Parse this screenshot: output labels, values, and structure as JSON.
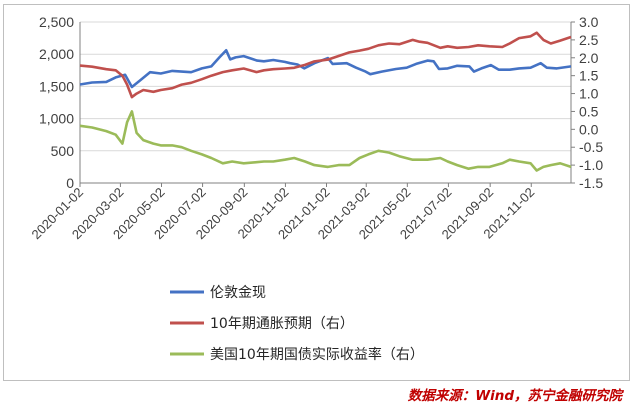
{
  "chart_data": {
    "type": "line",
    "x_ticks": [
      "2020-01-02",
      "2020-03-02",
      "2020-05-02",
      "2020-07-02",
      "2020-09-02",
      "2020-11-02",
      "2021-01-02",
      "2021-03-02",
      "2021-05-02",
      "2021-07-02",
      "2021-09-02",
      "2021-11-02"
    ],
    "x_range": [
      "2020-01-02",
      "2021-12-31"
    ],
    "y_left": {
      "lim": [
        0,
        2500
      ],
      "ticks": [
        "0",
        "500",
        "1,000",
        "1,500",
        "2,000",
        "2,500"
      ]
    },
    "y_right": {
      "lim": [
        -1.5,
        3.0
      ],
      "ticks": [
        "-1.5",
        "-1.0",
        "-0.5",
        "0.0",
        "0.5",
        "1.0",
        "1.5",
        "2.0",
        "2.5",
        "3.0"
      ]
    },
    "grid": "horizontal",
    "legend_position": "bottom",
    "series": [
      {
        "name": "伦敦金现",
        "axis": "left",
        "color": "#4472c4",
        "points": [
          [
            "2020-01-02",
            1530
          ],
          [
            "2020-01-20",
            1560
          ],
          [
            "2020-02-10",
            1570
          ],
          [
            "2020-02-24",
            1640
          ],
          [
            "2020-03-09",
            1680
          ],
          [
            "2020-03-19",
            1490
          ],
          [
            "2020-04-01",
            1600
          ],
          [
            "2020-04-15",
            1720
          ],
          [
            "2020-05-01",
            1700
          ],
          [
            "2020-05-18",
            1740
          ],
          [
            "2020-06-01",
            1730
          ],
          [
            "2020-06-15",
            1720
          ],
          [
            "2020-07-01",
            1780
          ],
          [
            "2020-07-15",
            1810
          ],
          [
            "2020-07-27",
            1950
          ],
          [
            "2020-08-06",
            2060
          ],
          [
            "2020-08-12",
            1920
          ],
          [
            "2020-08-20",
            1950
          ],
          [
            "2020-09-01",
            1970
          ],
          [
            "2020-09-21",
            1900
          ],
          [
            "2020-10-01",
            1890
          ],
          [
            "2020-10-15",
            1910
          ],
          [
            "2020-11-01",
            1880
          ],
          [
            "2020-11-09",
            1860
          ],
          [
            "2020-11-20",
            1840
          ],
          [
            "2020-11-30",
            1780
          ],
          [
            "2020-12-15",
            1860
          ],
          [
            "2021-01-04",
            1940
          ],
          [
            "2021-01-11",
            1850
          ],
          [
            "2021-02-01",
            1860
          ],
          [
            "2021-02-15",
            1790
          ],
          [
            "2021-03-01",
            1730
          ],
          [
            "2021-03-08",
            1690
          ],
          [
            "2021-03-25",
            1730
          ],
          [
            "2021-04-15",
            1770
          ],
          [
            "2021-05-01",
            1790
          ],
          [
            "2021-05-15",
            1850
          ],
          [
            "2021-06-01",
            1900
          ],
          [
            "2021-06-10",
            1890
          ],
          [
            "2021-06-18",
            1770
          ],
          [
            "2021-07-01",
            1780
          ],
          [
            "2021-07-15",
            1820
          ],
          [
            "2021-08-02",
            1810
          ],
          [
            "2021-08-09",
            1730
          ],
          [
            "2021-08-20",
            1780
          ],
          [
            "2021-09-03",
            1830
          ],
          [
            "2021-09-15",
            1760
          ],
          [
            "2021-10-01",
            1760
          ],
          [
            "2021-10-15",
            1780
          ],
          [
            "2021-11-01",
            1790
          ],
          [
            "2021-11-16",
            1860
          ],
          [
            "2021-11-25",
            1790
          ],
          [
            "2021-12-10",
            1780
          ],
          [
            "2021-12-31",
            1810
          ]
        ]
      },
      {
        "name": "10年期通胀预期（右）",
        "axis": "right",
        "color": "#c0504d",
        "points": [
          [
            "2020-01-02",
            1.78
          ],
          [
            "2020-01-20",
            1.75
          ],
          [
            "2020-02-10",
            1.68
          ],
          [
            "2020-02-24",
            1.65
          ],
          [
            "2020-03-05",
            1.5
          ],
          [
            "2020-03-12",
            1.25
          ],
          [
            "2020-03-19",
            0.9
          ],
          [
            "2020-03-26",
            1.0
          ],
          [
            "2020-04-05",
            1.1
          ],
          [
            "2020-04-20",
            1.05
          ],
          [
            "2020-05-01",
            1.1
          ],
          [
            "2020-05-18",
            1.15
          ],
          [
            "2020-06-01",
            1.25
          ],
          [
            "2020-06-15",
            1.3
          ],
          [
            "2020-07-01",
            1.4
          ],
          [
            "2020-07-15",
            1.5
          ],
          [
            "2020-08-01",
            1.6
          ],
          [
            "2020-08-15",
            1.65
          ],
          [
            "2020-09-01",
            1.7
          ],
          [
            "2020-09-20",
            1.6
          ],
          [
            "2020-10-01",
            1.65
          ],
          [
            "2020-10-15",
            1.68
          ],
          [
            "2020-11-01",
            1.7
          ],
          [
            "2020-11-15",
            1.72
          ],
          [
            "2020-12-01",
            1.8
          ],
          [
            "2020-12-15",
            1.9
          ],
          [
            "2021-01-04",
            1.95
          ],
          [
            "2021-01-20",
            2.05
          ],
          [
            "2021-02-05",
            2.15
          ],
          [
            "2021-02-20",
            2.2
          ],
          [
            "2021-03-05",
            2.25
          ],
          [
            "2021-03-20",
            2.35
          ],
          [
            "2021-04-05",
            2.4
          ],
          [
            "2021-04-20",
            2.38
          ],
          [
            "2021-05-10",
            2.5
          ],
          [
            "2021-05-20",
            2.45
          ],
          [
            "2021-06-01",
            2.42
          ],
          [
            "2021-06-20",
            2.28
          ],
          [
            "2021-07-01",
            2.32
          ],
          [
            "2021-07-15",
            2.28
          ],
          [
            "2021-08-01",
            2.3
          ],
          [
            "2021-08-15",
            2.35
          ],
          [
            "2021-09-01",
            2.32
          ],
          [
            "2021-09-20",
            2.3
          ],
          [
            "2021-10-01",
            2.4
          ],
          [
            "2021-10-15",
            2.55
          ],
          [
            "2021-11-01",
            2.6
          ],
          [
            "2021-11-10",
            2.7
          ],
          [
            "2021-11-20",
            2.5
          ],
          [
            "2021-12-01",
            2.4
          ],
          [
            "2021-12-15",
            2.48
          ],
          [
            "2021-12-31",
            2.58
          ]
        ]
      },
      {
        "name": "美国10年期国债实际收益率（右）",
        "axis": "right",
        "color": "#9bbb59",
        "points": [
          [
            "2020-01-02",
            0.1
          ],
          [
            "2020-01-20",
            0.05
          ],
          [
            "2020-02-10",
            -0.05
          ],
          [
            "2020-02-24",
            -0.15
          ],
          [
            "2020-03-05",
            -0.4
          ],
          [
            "2020-03-12",
            0.2
          ],
          [
            "2020-03-19",
            0.5
          ],
          [
            "2020-03-26",
            -0.1
          ],
          [
            "2020-04-05",
            -0.3
          ],
          [
            "2020-04-20",
            -0.4
          ],
          [
            "2020-05-01",
            -0.45
          ],
          [
            "2020-05-18",
            -0.45
          ],
          [
            "2020-06-01",
            -0.5
          ],
          [
            "2020-06-15",
            -0.6
          ],
          [
            "2020-07-01",
            -0.7
          ],
          [
            "2020-07-15",
            -0.8
          ],
          [
            "2020-08-01",
            -0.95
          ],
          [
            "2020-08-15",
            -0.9
          ],
          [
            "2020-09-01",
            -0.95
          ],
          [
            "2020-09-20",
            -0.92
          ],
          [
            "2020-10-01",
            -0.9
          ],
          [
            "2020-10-15",
            -0.9
          ],
          [
            "2020-11-01",
            -0.85
          ],
          [
            "2020-11-15",
            -0.8
          ],
          [
            "2020-12-01",
            -0.9
          ],
          [
            "2020-12-15",
            -1.0
          ],
          [
            "2021-01-04",
            -1.05
          ],
          [
            "2021-01-20",
            -1.0
          ],
          [
            "2021-02-05",
            -1.0
          ],
          [
            "2021-02-20",
            -0.8
          ],
          [
            "2021-03-05",
            -0.7
          ],
          [
            "2021-03-20",
            -0.6
          ],
          [
            "2021-04-05",
            -0.65
          ],
          [
            "2021-04-20",
            -0.75
          ],
          [
            "2021-05-10",
            -0.85
          ],
          [
            "2021-05-20",
            -0.85
          ],
          [
            "2021-06-01",
            -0.85
          ],
          [
            "2021-06-20",
            -0.8
          ],
          [
            "2021-07-01",
            -0.9
          ],
          [
            "2021-07-15",
            -1.0
          ],
          [
            "2021-08-01",
            -1.1
          ],
          [
            "2021-08-15",
            -1.05
          ],
          [
            "2021-09-01",
            -1.05
          ],
          [
            "2021-09-20",
            -0.95
          ],
          [
            "2021-10-01",
            -0.85
          ],
          [
            "2021-10-15",
            -0.9
          ],
          [
            "2021-11-01",
            -0.95
          ],
          [
            "2021-11-10",
            -1.15
          ],
          [
            "2021-11-20",
            -1.05
          ],
          [
            "2021-12-01",
            -1.0
          ],
          [
            "2021-12-15",
            -0.95
          ],
          [
            "2021-12-31",
            -1.05
          ]
        ]
      }
    ]
  },
  "source_text": "数据来源：Wind，苏宁金融研究院"
}
